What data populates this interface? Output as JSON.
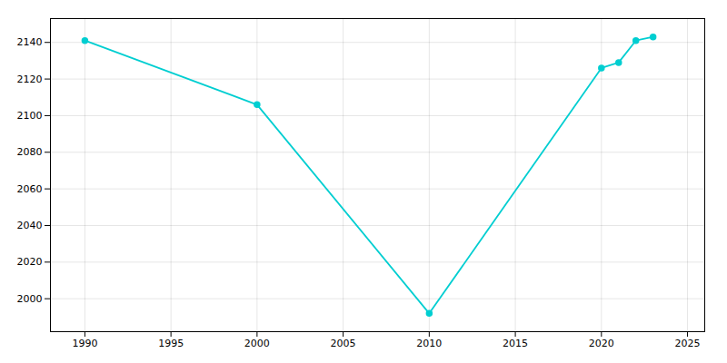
{
  "chart_data": {
    "type": "line",
    "x": [
      1990,
      2000,
      2010,
      2020,
      2021,
      2022,
      2023
    ],
    "values": [
      2141,
      2106,
      1992,
      2126,
      2129,
      2141,
      2143
    ],
    "color": "#00CED1",
    "marker": "circle",
    "xlim": [
      1988,
      2026
    ],
    "ylim": [
      1982,
      2153
    ],
    "xticks": [
      1990,
      1995,
      2000,
      2005,
      2010,
      2015,
      2020,
      2025
    ],
    "yticks": [
      2000,
      2020,
      2040,
      2060,
      2080,
      2100,
      2120,
      2140
    ],
    "grid": true
  }
}
